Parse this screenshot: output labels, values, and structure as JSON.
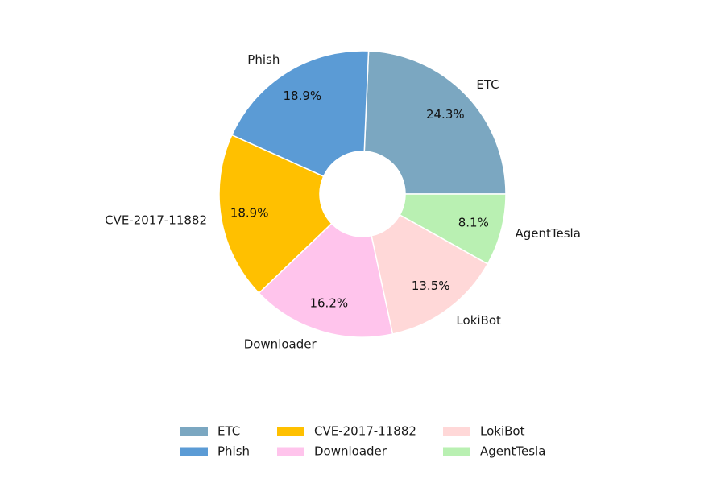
{
  "chart_data": {
    "type": "pie",
    "donut": true,
    "start_angle_deg": 0,
    "direction": "counterclockwise",
    "slices": [
      {
        "label": "ETC",
        "value": 24.3,
        "pct_label": "24.3%",
        "color": "#7BA7C1"
      },
      {
        "label": "Phish",
        "value": 18.9,
        "pct_label": "18.9%",
        "color": "#5B9BD5"
      },
      {
        "label": "CVE-2017-11882",
        "value": 18.9,
        "pct_label": "18.9%",
        "color": "#FFC000"
      },
      {
        "label": "Downloader",
        "value": 16.2,
        "pct_label": "16.2%",
        "color": "#FFC4EC"
      },
      {
        "label": "LokiBot",
        "value": 13.5,
        "pct_label": "13.5%",
        "color": "#FFD8D8"
      },
      {
        "label": "AgentTesla",
        "value": 8.1,
        "pct_label": "8.1%",
        "color": "#B9F0B2"
      }
    ],
    "legend_position": "bottom",
    "legend_columns": 3
  }
}
